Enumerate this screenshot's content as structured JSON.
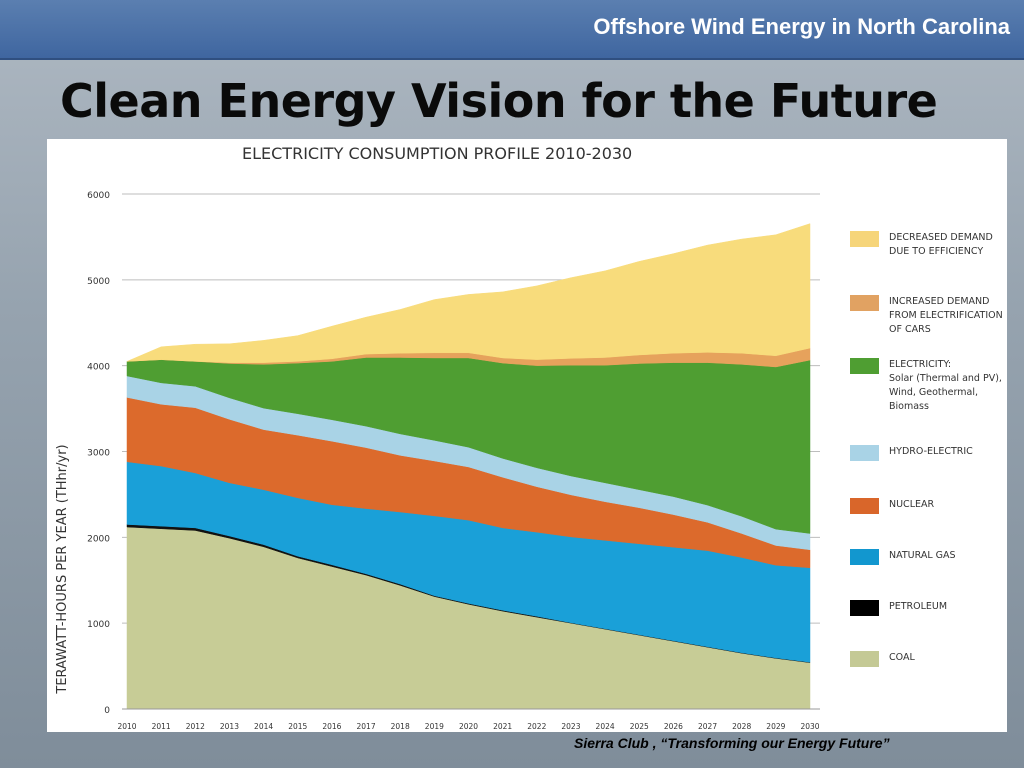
{
  "header": {
    "title": "Offshore Wind Energy in North Carolina"
  },
  "slide": {
    "title": "Clean Energy Vision for the Future",
    "caption": "Sierra Club , “Transforming our Energy Future”"
  },
  "chart_data": {
    "type": "area",
    "title": "ELECTRICITY CONSUMPTION PROFILE 2010-2030",
    "ylabel": "TERAWATT-HOURS PER YEAR (THhr/yr)",
    "xlabel": "",
    "ylim": [
      0,
      6000
    ],
    "yticks": [
      "0",
      "1000",
      "2000",
      "3000",
      "4000",
      "5000",
      "6000"
    ],
    "x": [
      "2010",
      "2011",
      "2012",
      "2013",
      "2014",
      "2015",
      "2016",
      "2017",
      "2018",
      "2019",
      "2020",
      "2021",
      "2022",
      "2023",
      "2024",
      "2025",
      "2026",
      "2027",
      "2028",
      "2029",
      "2030"
    ],
    "grid": true,
    "legend_position": "right",
    "series": [
      {
        "name": "COAL",
        "color": "#c7cc96",
        "values": [
          2120,
          2100,
          2080,
          1990,
          1890,
          1760,
          1660,
          1560,
          1440,
          1310,
          1220,
          1140,
          1070,
          1000,
          930,
          860,
          790,
          720,
          650,
          590,
          540
        ]
      },
      {
        "name": "PETROLEUM",
        "color": "#111111",
        "values": [
          30,
          30,
          30,
          25,
          25,
          20,
          20,
          15,
          15,
          10,
          10,
          10,
          10,
          5,
          5,
          5,
          5,
          5,
          5,
          5,
          5
        ]
      },
      {
        "name": "NATURAL GAS",
        "color": "#1aa0d8",
        "values": [
          730,
          700,
          640,
          620,
          640,
          680,
          700,
          760,
          840,
          930,
          970,
          960,
          980,
          1000,
          1030,
          1060,
          1090,
          1120,
          1110,
          1080,
          1100
        ]
      },
      {
        "name": "NUCLEAR",
        "color": "#dc6a2c",
        "values": [
          750,
          720,
          760,
          740,
          700,
          730,
          740,
          710,
          660,
          640,
          620,
          590,
          530,
          490,
          450,
          420,
          380,
          330,
          280,
          230,
          210
        ]
      },
      {
        "name": "HYDRO-ELECTRIC",
        "color": "#a9d3e6",
        "values": [
          250,
          250,
          250,
          250,
          250,
          250,
          250,
          250,
          250,
          240,
          230,
          220,
          220,
          220,
          220,
          210,
          210,
          200,
          200,
          190,
          190
        ]
      },
      {
        "name": "ELECTRICITY: Solar (Thermal and PV), Wind, Geothermal, Biomass",
        "color": "#4f9e32",
        "values": [
          170,
          270,
          290,
          400,
          510,
          590,
          680,
          800,
          890,
          960,
          1040,
          1110,
          1190,
          1290,
          1370,
          1470,
          1560,
          1660,
          1770,
          1890,
          2020
        ]
      },
      {
        "name": "INCREASED DEMAND FROM ELECTRIFICATION OF CARS",
        "color": "#e6a25c",
        "values": [
          0,
          0,
          0,
          10,
          20,
          20,
          30,
          40,
          50,
          60,
          60,
          60,
          70,
          80,
          90,
          100,
          110,
          120,
          130,
          130,
          140
        ]
      },
      {
        "name": "DECREASED DEMAND DUE TO EFFICIENCY",
        "color": "#f8dc7c",
        "values": [
          0,
          150,
          200,
          220,
          260,
          300,
          380,
          430,
          510,
          620,
          680,
          770,
          860,
          940,
          1010,
          1090,
          1160,
          1250,
          1330,
          1410,
          1450
        ]
      }
    ],
    "legend": [
      {
        "lines": [
          "DECREASED DEMAND",
          "DUE TO EFFICIENCY"
        ],
        "color": "#f6d57a"
      },
      {
        "lines": [
          "INCREASED DEMAND",
          "FROM ELECTRIFICATION",
          "OF CARS"
        ],
        "color": "#e1a262"
      },
      {
        "lines": [
          "ELECTRICITY:",
          "Solar (Thermal and PV),",
          "Wind, Geothermal,",
          "Biomass"
        ],
        "color": "#4f9e32"
      },
      {
        "lines": [
          "HYDRO-ELECTRIC"
        ],
        "color": "#a9d3e6"
      },
      {
        "lines": [
          "NUCLEAR"
        ],
        "color": "#d9662a"
      },
      {
        "lines": [
          "NATURAL GAS"
        ],
        "color": "#1297cf"
      },
      {
        "lines": [
          "PETROLEUM"
        ],
        "color": "#000000"
      },
      {
        "lines": [
          "COAL"
        ],
        "color": "#c4c995"
      }
    ]
  }
}
